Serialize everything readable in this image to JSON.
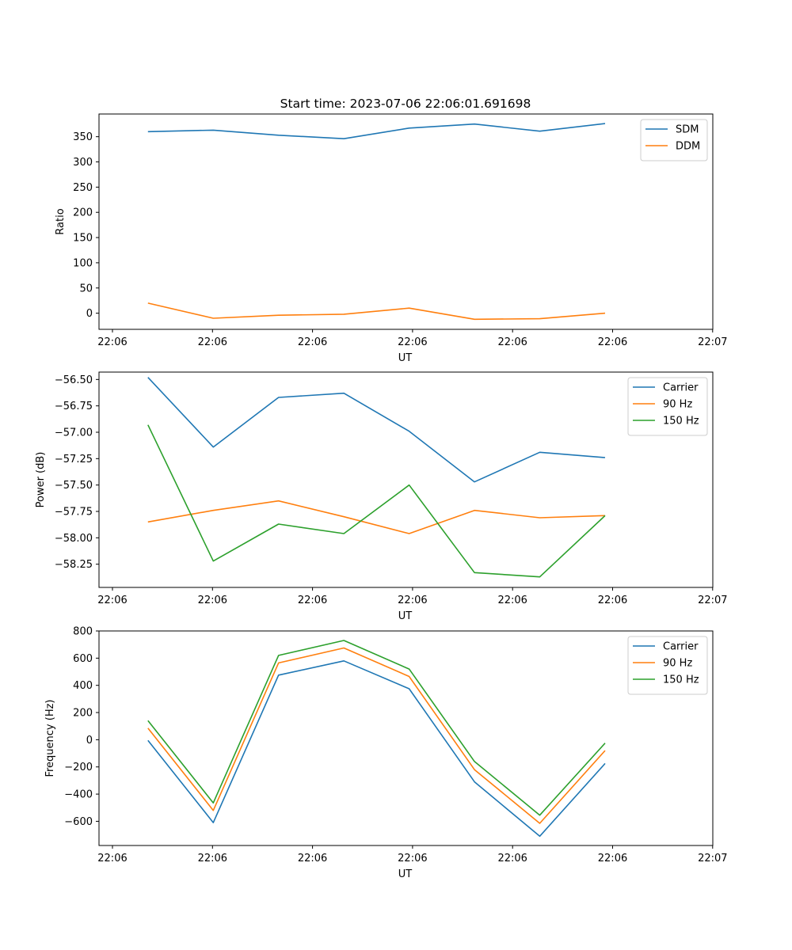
{
  "figure_title": "Start time: 2023-07-06 22:06:01.691698",
  "chart_data": [
    {
      "type": "line",
      "title": "Start time: 2023-07-06 22:06:01.691698",
      "xlabel": "UT",
      "ylabel": "Ratio",
      "x_tick_labels": [
        "22:06",
        "22:06",
        "22:06",
        "22:06",
        "22:06",
        "22:06",
        "22:07"
      ],
      "y_ticks": [
        0,
        50,
        100,
        150,
        200,
        250,
        300,
        350
      ],
      "y_tick_labels": [
        "0",
        "50",
        "100",
        "150",
        "200",
        "250",
        "300",
        "350"
      ],
      "ylim": [
        -32,
        395
      ],
      "grid": false,
      "legend_position": "top-right",
      "x": [
        1,
        2,
        3,
        4,
        5,
        6,
        7,
        8
      ],
      "series": [
        {
          "name": "SDM",
          "color": "#1f77b4",
          "values": [
            360,
            363,
            353,
            346,
            367,
            375,
            361,
            376
          ]
        },
        {
          "name": "DDM",
          "color": "#ff7f0e",
          "values": [
            20,
            -10,
            -4,
            -2,
            10,
            -12,
            -11,
            0
          ]
        }
      ]
    },
    {
      "type": "line",
      "title": "",
      "xlabel": "UT",
      "ylabel": "Power (dB)",
      "x_tick_labels": [
        "22:06",
        "22:06",
        "22:06",
        "22:06",
        "22:06",
        "22:06",
        "22:07"
      ],
      "y_ticks": [
        -56.5,
        -56.75,
        -57.0,
        -57.25,
        -57.5,
        -57.75,
        -58.0,
        -58.25
      ],
      "y_tick_labels": [
        "−56.50",
        "−56.75",
        "−57.00",
        "−57.25",
        "−57.50",
        "−57.75",
        "−58.00",
        "−58.25"
      ],
      "ylim": [
        -58.47,
        -56.43
      ],
      "grid": false,
      "legend_position": "top-right",
      "x": [
        1,
        2,
        3,
        4,
        5,
        6,
        7,
        8
      ],
      "series": [
        {
          "name": "Carrier",
          "color": "#1f77b4",
          "values": [
            -56.48,
            -57.14,
            -56.67,
            -56.63,
            -56.99,
            -57.47,
            -57.19,
            -57.24
          ]
        },
        {
          "name": "90 Hz",
          "color": "#ff7f0e",
          "values": [
            -57.85,
            -57.74,
            -57.65,
            -57.8,
            -57.96,
            -57.74,
            -57.81,
            -57.79
          ]
        },
        {
          "name": "150 Hz",
          "color": "#2ca02c",
          "values": [
            -56.93,
            -58.22,
            -57.87,
            -57.96,
            -57.5,
            -58.33,
            -58.37,
            -57.79
          ]
        }
      ]
    },
    {
      "type": "line",
      "title": "",
      "xlabel": "UT",
      "ylabel": "Frequency (Hz)",
      "x_tick_labels": [
        "22:06",
        "22:06",
        "22:06",
        "22:06",
        "22:06",
        "22:06",
        "22:07"
      ],
      "y_ticks": [
        800,
        600,
        400,
        200,
        0,
        -200,
        -400,
        -600
      ],
      "y_tick_labels": [
        "800",
        "600",
        "400",
        "200",
        "0",
        "−200",
        "−400",
        "−600"
      ],
      "ylim": [
        -778,
        800
      ],
      "grid": false,
      "legend_position": "top-right",
      "x": [
        1,
        2,
        3,
        4,
        5,
        6,
        7,
        8
      ],
      "series": [
        {
          "name": "Carrier",
          "color": "#1f77b4",
          "values": [
            -5,
            -610,
            475,
            580,
            375,
            -310,
            -710,
            -175
          ]
        },
        {
          "name": "90 Hz",
          "color": "#ff7f0e",
          "values": [
            85,
            -520,
            565,
            675,
            465,
            -220,
            -615,
            -80
          ]
        },
        {
          "name": "150 Hz",
          "color": "#2ca02c",
          "values": [
            140,
            -465,
            620,
            730,
            520,
            -160,
            -555,
            -25
          ]
        }
      ]
    }
  ]
}
